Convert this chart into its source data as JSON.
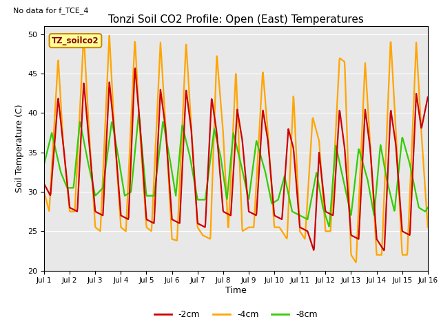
{
  "title": "Tonzi Soil CO2 Profile: Open (East) Temperatures",
  "no_data_label": "No data for f_TCE_4",
  "ylabel": "Soil Temperature (C)",
  "xlabel": "Time",
  "ylim": [
    20,
    51
  ],
  "yticks": [
    20,
    25,
    30,
    35,
    40,
    45,
    50
  ],
  "xlim": [
    0,
    15
  ],
  "xtick_labels": [
    "Jul 1",
    "Jul 2",
    "Jul 3",
    "Jul 4",
    "Jul 5",
    "Jul 6",
    "Jul 7",
    "Jul 8",
    "Jul 9",
    "Jul 10",
    "Jul 11",
    "Jul 12",
    "Jul 13",
    "Jul 14",
    "Jul 15",
    "Jul 16"
  ],
  "bg_color": "#e8e8e8",
  "legend_label": "TZ_soilco2",
  "legend_box_color": "#ffff99",
  "legend_text_color": "#880000",
  "series": {
    "m2cm": {
      "label": "-2cm",
      "color": "#cc0000",
      "linewidth": 1.6,
      "data_x": [
        0.0,
        0.25,
        0.55,
        0.75,
        1.0,
        1.3,
        1.55,
        1.75,
        2.0,
        2.3,
        2.55,
        2.75,
        3.0,
        3.3,
        3.55,
        3.75,
        4.0,
        4.3,
        4.55,
        4.75,
        5.0,
        5.3,
        5.55,
        5.75,
        6.0,
        6.3,
        6.55,
        6.75,
        7.0,
        7.3,
        7.55,
        7.75,
        8.0,
        8.3,
        8.55,
        8.75,
        9.0,
        9.3,
        9.55,
        9.75,
        10.0,
        10.3,
        10.55,
        10.75,
        11.0,
        11.3,
        11.55,
        11.75,
        12.0,
        12.3,
        12.55,
        12.75,
        13.0,
        13.3,
        13.55,
        13.75,
        14.0,
        14.3,
        14.55,
        14.75,
        15.0
      ],
      "data_y": [
        31.0,
        29.5,
        42.0,
        36.0,
        28.0,
        27.5,
        44.0,
        36.5,
        27.5,
        27.0,
        44.0,
        37.5,
        27.0,
        26.5,
        46.0,
        38.5,
        26.5,
        26.0,
        43.0,
        38.0,
        26.5,
        26.0,
        43.0,
        38.0,
        26.0,
        25.5,
        42.0,
        37.5,
        27.5,
        27.0,
        40.5,
        36.5,
        27.5,
        27.0,
        40.5,
        36.5,
        27.0,
        26.5,
        38.0,
        35.5,
        25.5,
        25.0,
        22.5,
        35.0,
        27.5,
        27.0,
        40.5,
        35.5,
        24.5,
        24.0,
        40.5,
        35.5,
        24.0,
        22.5,
        40.5,
        36.0,
        25.0,
        24.5,
        42.5,
        38.0,
        42.0
      ]
    },
    "m4cm": {
      "label": "-4cm",
      "color": "#ffa500",
      "linewidth": 1.6,
      "data_x": [
        0.0,
        0.2,
        0.55,
        0.75,
        1.0,
        1.2,
        1.55,
        1.75,
        2.0,
        2.2,
        2.55,
        2.75,
        3.0,
        3.2,
        3.55,
        3.75,
        4.0,
        4.2,
        4.55,
        4.75,
        5.0,
        5.2,
        5.55,
        5.75,
        6.0,
        6.2,
        6.5,
        6.75,
        7.0,
        7.2,
        7.5,
        7.75,
        8.0,
        8.2,
        8.55,
        8.75,
        9.0,
        9.2,
        9.5,
        9.75,
        10.0,
        10.2,
        10.5,
        10.75,
        11.0,
        11.2,
        11.55,
        11.75,
        12.0,
        12.2,
        12.55,
        12.75,
        13.0,
        13.2,
        13.55,
        13.75,
        14.0,
        14.2,
        14.55,
        14.75,
        15.0
      ],
      "data_y": [
        30.0,
        27.5,
        47.0,
        36.0,
        27.5,
        27.5,
        50.0,
        38.0,
        25.5,
        25.0,
        50.0,
        37.5,
        25.5,
        25.0,
        49.5,
        37.5,
        25.5,
        25.0,
        49.0,
        38.5,
        24.0,
        23.8,
        49.0,
        38.5,
        25.5,
        24.5,
        24.0,
        47.5,
        37.5,
        25.0,
        45.5,
        25.0,
        25.5,
        25.5,
        45.5,
        37.5,
        25.5,
        25.5,
        24.0,
        42.5,
        25.0,
        24.0,
        39.5,
        36.5,
        25.0,
        25.0,
        47.0,
        46.5,
        22.0,
        21.0,
        46.5,
        36.0,
        22.0,
        22.0,
        49.5,
        38.0,
        22.0,
        22.0,
        49.0,
        37.5,
        25.5
      ]
    },
    "m8cm": {
      "label": "-8cm",
      "color": "#33cc00",
      "linewidth": 1.6,
      "data_x": [
        0.0,
        0.3,
        0.65,
        0.9,
        1.15,
        1.4,
        1.7,
        2.0,
        2.3,
        2.65,
        2.9,
        3.15,
        3.4,
        3.7,
        4.0,
        4.3,
        4.65,
        4.9,
        5.15,
        5.4,
        5.7,
        6.0,
        6.3,
        6.65,
        6.9,
        7.15,
        7.4,
        7.7,
        8.0,
        8.3,
        8.65,
        8.9,
        9.15,
        9.4,
        9.7,
        10.0,
        10.3,
        10.65,
        10.9,
        11.15,
        11.4,
        11.7,
        12.0,
        12.3,
        12.65,
        12.9,
        13.15,
        13.4,
        13.7,
        14.0,
        14.3,
        14.65,
        14.9,
        15.0
      ],
      "data_y": [
        33.5,
        37.5,
        32.5,
        30.5,
        30.5,
        39.0,
        34.0,
        29.5,
        30.5,
        39.0,
        34.5,
        29.5,
        30.0,
        40.0,
        29.5,
        29.5,
        39.0,
        34.5,
        29.5,
        38.5,
        34.5,
        29.0,
        29.0,
        38.0,
        34.5,
        29.0,
        37.5,
        33.5,
        29.0,
        36.5,
        32.5,
        28.5,
        29.0,
        32.0,
        27.5,
        27.0,
        26.5,
        32.5,
        28.0,
        25.5,
        36.0,
        31.5,
        27.0,
        35.5,
        31.5,
        27.0,
        36.0,
        31.5,
        27.5,
        37.0,
        33.5,
        28.0,
        27.5,
        28.0
      ]
    }
  }
}
